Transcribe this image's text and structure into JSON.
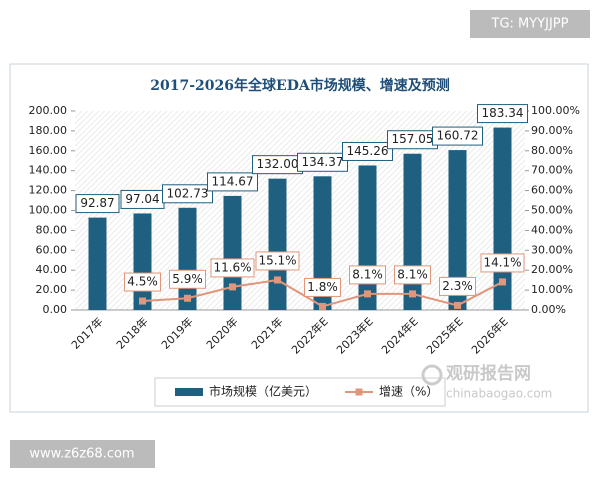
{
  "chart_data": {
    "type": "bar",
    "title": "2017-2026年全球EDA市场规模、增速及预测",
    "categories": [
      "2017年",
      "2018年",
      "2019年",
      "2020年",
      "2021年",
      "2022年E",
      "2023年E",
      "2024年E",
      "2025年E",
      "2026年E"
    ],
    "series": [
      {
        "name": "市场规模（亿美元）",
        "type": "bar",
        "color": "#1f5f7f",
        "values": [
          92.87,
          97.04,
          102.73,
          114.67,
          132.0,
          134.37,
          145.26,
          157.05,
          160.72,
          183.34
        ],
        "value_labels": [
          "92.87",
          "97.04",
          "102.73",
          "114.67",
          "132.00",
          "134.37",
          "145.26",
          "157.05",
          "160.72",
          "183.34"
        ]
      },
      {
        "name": "增速（%）",
        "type": "line",
        "axis": "y2",
        "color": "#e0967a",
        "values": [
          null,
          4.5,
          5.9,
          11.6,
          15.1,
          1.8,
          8.1,
          8.1,
          2.3,
          14.1
        ],
        "value_labels": [
          null,
          "4.5%",
          "5.9%",
          "11.6%",
          "15.1%",
          "1.8%",
          "8.1%",
          "8.1%",
          "2.3%",
          "14.1%"
        ]
      }
    ],
    "ylim": [
      0,
      200
    ],
    "yticks": [
      {
        "value": 0,
        "label": "0.00"
      },
      {
        "value": 20,
        "label": "20.00"
      },
      {
        "value": 40,
        "label": "40.00"
      },
      {
        "value": 60,
        "label": "60.00"
      },
      {
        "value": 80,
        "label": "80.00"
      },
      {
        "value": 100,
        "label": "100.00"
      },
      {
        "value": 120,
        "label": "120.00"
      },
      {
        "value": 140,
        "label": "140.00"
      },
      {
        "value": 160,
        "label": "160.00"
      },
      {
        "value": 180,
        "label": "180.00"
      },
      {
        "value": 200,
        "label": "200.00"
      }
    ],
    "y2lim": [
      0,
      100
    ],
    "y2ticks": [
      {
        "value": 0,
        "label": "0.00%"
      },
      {
        "value": 10,
        "label": "10.00%"
      },
      {
        "value": 20,
        "label": "20.00%"
      },
      {
        "value": 30,
        "label": "30.00%"
      },
      {
        "value": 40,
        "label": "40.00%"
      },
      {
        "value": 50,
        "label": "50.00%"
      },
      {
        "value": 60,
        "label": "60.00%"
      },
      {
        "value": 70,
        "label": "70.00%"
      },
      {
        "value": 80,
        "label": "80.00%"
      },
      {
        "value": 90,
        "label": "90.00%"
      },
      {
        "value": 100,
        "label": "100.00%"
      }
    ],
    "legend": "bottom"
  },
  "source": {
    "name": "观研报告网",
    "site": "chinabaogao.com"
  },
  "watermarks": [
    "TG: MYYJJPP",
    "www.z6z68.com"
  ]
}
